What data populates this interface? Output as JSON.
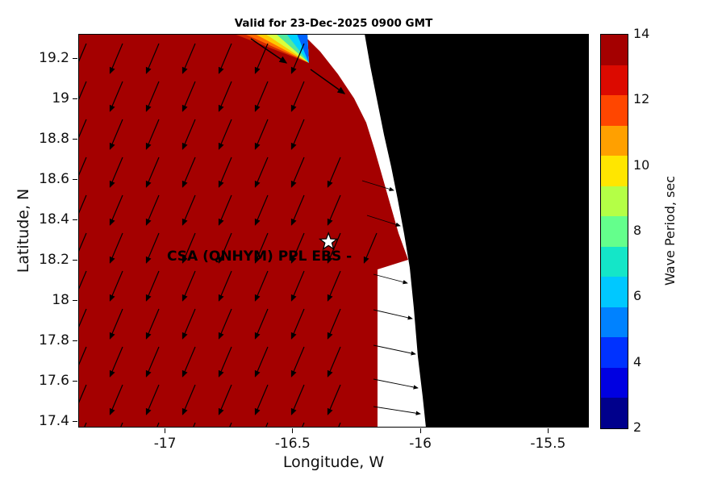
{
  "figure": {
    "title": "Valid for 23-Dec-2025 0900 GMT",
    "xlabel": "Longitude, W",
    "ylabel": "Latitude, N",
    "colorbar_label": "Wave Period, sec"
  },
  "chart_data": {
    "type": "heatmap",
    "title": "Valid for 23-Dec-2025 0900 GMT",
    "xlabel": "Longitude, W",
    "ylabel": "Latitude, N",
    "xlim": [
      -17.34,
      -15.34
    ],
    "ylim": [
      17.37,
      19.32
    ],
    "x_ticks": [
      -17,
      -16.5,
      -16,
      -15.5
    ],
    "y_ticks": [
      17.4,
      17.6,
      17.8,
      18,
      18.2,
      18.4,
      18.6,
      18.8,
      19,
      19.2
    ],
    "grid": false,
    "field_description": "Peak wave period approximately uniform 14 s (dark red) over ocean; land masked black; white no-data band along coast; small multicolor shallow-water patch at top near coast",
    "ocean_value_sec": 14,
    "wave_direction_toward_deg": 203,
    "station": {
      "label": "CSA (QNHYM) PPL EBS -",
      "lon": -16.36,
      "lat": 18.29,
      "marker": "white-star"
    },
    "colorbar": {
      "label": "Wave Period, sec",
      "min": 2,
      "max": 14,
      "ticks": [
        2,
        4,
        6,
        8,
        10,
        12,
        14
      ],
      "colors_bottom_to_top": [
        "#00008C",
        "#0000E1",
        "#0032FF",
        "#0082FF",
        "#00C8FF",
        "#14E6C8",
        "#64FF8C",
        "#B4FF46",
        "#FFE600",
        "#FFA000",
        "#FF4600",
        "#DC0A00",
        "#A40000"
      ]
    },
    "colors": {
      "ocean": "#A40000",
      "land": "#000000",
      "coast_nodata": "#FFFFFF",
      "arrow": "#000000"
    },
    "geo": {
      "ref": [
        633,
        488
      ],
      "coast_nodata_poly": [
        [
          278,
          0
        ],
        [
          300,
          22
        ],
        [
          322,
          50
        ],
        [
          342,
          80
        ],
        [
          357,
          110
        ],
        [
          367,
          142
        ],
        [
          377,
          177
        ],
        [
          387,
          212
        ],
        [
          397,
          247
        ],
        [
          409,
          280
        ],
        [
          371,
          292
        ],
        [
          371,
          488
        ],
        [
          633,
          488
        ],
        [
          633,
          0
        ]
      ],
      "land_poly": [
        [
          355,
          0
        ],
        [
          362,
          40
        ],
        [
          371,
          85
        ],
        [
          379,
          125
        ],
        [
          388,
          165
        ],
        [
          396,
          205
        ],
        [
          404,
          248
        ],
        [
          411,
          290
        ],
        [
          416,
          340
        ],
        [
          421,
          400
        ],
        [
          427,
          450
        ],
        [
          431,
          488
        ],
        [
          633,
          488
        ],
        [
          633,
          0
        ]
      ],
      "shallow_patch": {
        "apex": [
          286,
          36
        ],
        "x_start": 193,
        "band_width": 13,
        "band_colors": [
          "#D42A00",
          "#FF6A00",
          "#FFC800",
          "#D8FF3C",
          "#50E8A0",
          "#00D2FF",
          "#0064FF"
        ]
      },
      "red_edge": {
        "intercept": 283,
        "slope": 0.45,
        "y_break": 280,
        "x_below_break": 371
      }
    },
    "arrow_field": {
      "grid": {
        "x0": 10,
        "dx": 45,
        "y0": 12,
        "dy": 47
      },
      "length": 40,
      "coast_arrows": [
        [
          214,
          6,
          258,
          36
        ],
        [
          288,
          44,
          330,
          74
        ]
      ],
      "nodata_arrows": [
        [
          352,
          182,
          391,
          194
        ],
        [
          358,
          225,
          399,
          238
        ],
        [
          366,
          298,
          408,
          309
        ],
        [
          366,
          342,
          414,
          353
        ],
        [
          366,
          386,
          418,
          397
        ],
        [
          366,
          428,
          421,
          439
        ],
        [
          366,
          462,
          424,
          471
        ]
      ]
    }
  }
}
